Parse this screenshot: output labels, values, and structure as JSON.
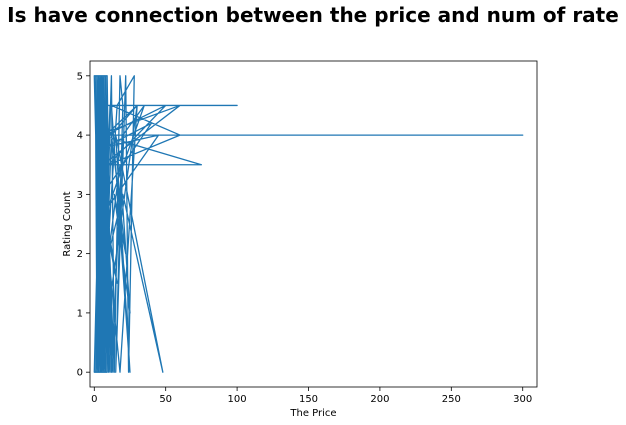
{
  "chart_data": {
    "type": "line",
    "title": "Is have connection between the price and num of rate",
    "xlabel": "The Price",
    "ylabel": "Rating Count",
    "xlim": [
      -3,
      310
    ],
    "ylim": [
      -0.25,
      5.25
    ],
    "xticks": [
      0,
      50,
      100,
      150,
      200,
      250,
      300
    ],
    "yticks": [
      0,
      1,
      2,
      3,
      4,
      5
    ],
    "grid": false,
    "legend": "none",
    "colors": {
      "line": "#1f77b4"
    },
    "series": [
      {
        "points": [
          [
            0,
            0
          ],
          [
            5,
            5
          ],
          [
            1,
            0
          ],
          [
            6,
            5
          ],
          [
            2,
            0
          ],
          [
            7,
            5
          ],
          [
            3,
            0
          ],
          [
            8,
            5
          ],
          [
            4,
            0
          ],
          [
            9,
            5
          ],
          [
            0,
            5
          ],
          [
            5,
            0
          ],
          [
            1,
            5
          ],
          [
            6,
            0
          ],
          [
            2,
            5
          ],
          [
            7,
            0
          ],
          [
            3,
            5
          ],
          [
            8,
            0
          ],
          [
            4,
            5
          ],
          [
            9,
            0
          ],
          [
            0,
            0
          ],
          [
            5,
            5
          ],
          [
            1,
            0
          ],
          [
            6,
            5
          ],
          [
            2,
            0
          ],
          [
            7,
            5
          ],
          [
            3,
            0
          ],
          [
            8,
            5
          ],
          [
            4,
            0
          ],
          [
            9,
            5
          ],
          [
            10,
            0
          ],
          [
            2,
            5
          ],
          [
            11,
            0
          ],
          [
            3,
            5
          ],
          [
            12,
            0
          ],
          [
            4,
            5
          ],
          [
            13,
            0
          ],
          [
            5,
            5
          ],
          [
            14,
            0
          ],
          [
            6,
            5
          ],
          [
            2,
            0
          ],
          [
            8,
            4.5
          ],
          [
            3,
            0
          ],
          [
            9,
            4
          ],
          [
            4,
            0
          ],
          [
            10,
            3.5
          ],
          [
            5,
            0
          ],
          [
            11,
            4.5
          ],
          [
            6,
            0
          ],
          [
            12,
            4
          ],
          [
            1,
            4.5
          ],
          [
            100,
            4.5
          ],
          [
            2,
            4.5
          ],
          [
            3,
            0
          ],
          [
            1,
            4
          ],
          [
            300,
            4
          ],
          [
            3,
            4
          ],
          [
            2,
            0
          ],
          [
            1,
            4
          ],
          [
            250,
            4
          ],
          [
            4,
            4
          ],
          [
            5,
            0
          ],
          [
            3,
            4
          ],
          [
            60,
            4.5
          ],
          [
            6,
            3.5
          ],
          [
            75,
            3.5
          ],
          [
            5,
            4
          ],
          [
            6,
            0
          ],
          [
            12,
            5
          ],
          [
            14,
            0
          ],
          [
            18,
            5
          ],
          [
            20,
            4.5
          ],
          [
            15,
            0
          ],
          [
            22,
            5
          ],
          [
            24,
            0
          ],
          [
            28,
            5
          ],
          [
            16,
            4.5
          ],
          [
            4,
            0
          ],
          [
            30,
            4.5
          ],
          [
            8,
            4
          ],
          [
            50,
            4.5
          ],
          [
            10,
            3.5
          ],
          [
            60,
            4
          ],
          [
            12,
            4.5
          ],
          [
            25,
            0
          ],
          [
            15,
            4
          ],
          [
            48,
            0
          ],
          [
            20,
            3
          ],
          [
            10,
            2
          ],
          [
            18,
            3.5
          ],
          [
            25,
            1
          ],
          [
            14,
            3
          ],
          [
            22,
            2
          ],
          [
            12,
            4
          ],
          [
            30,
            4.5
          ],
          [
            18,
            0
          ],
          [
            8,
            2.5
          ],
          [
            16,
            1.5
          ],
          [
            6,
            3
          ],
          [
            40,
            4.2
          ],
          [
            8,
            3.8
          ],
          [
            45,
            4
          ],
          [
            10,
            2.8
          ],
          [
            35,
            4.5
          ],
          [
            20,
            4
          ],
          [
            12,
            0
          ],
          [
            9,
            5
          ],
          [
            7,
            0
          ],
          [
            4,
            5
          ],
          [
            2,
            0
          ],
          [
            1,
            5
          ],
          [
            3,
            3
          ],
          [
            0,
            0
          ]
        ]
      }
    ]
  }
}
